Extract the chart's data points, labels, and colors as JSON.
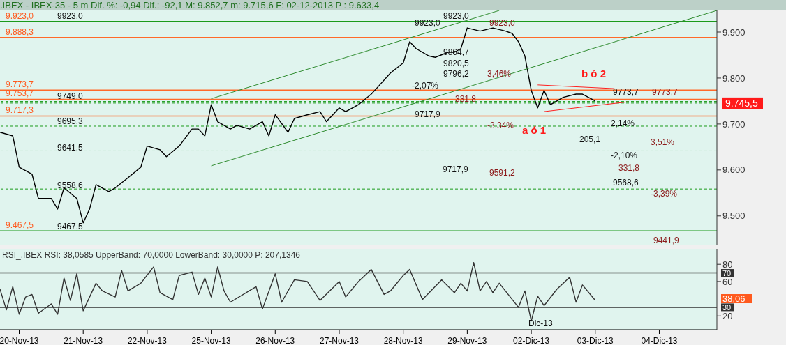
{
  "chart_data": [
    {
      "type": "line",
      "title": ".IBEX - IBEX-35 -  5 m Dif. %: -0,94 Dif.: -92,1 M: 9.852,7 m: 9.715,6 F: 02-12-2013 P : 9.633,4",
      "categories": [
        null,
        null,
        null,
        null,
        null,
        null,
        null,
        null,
        null,
        null,
        null,
        null,
        null,
        null,
        null,
        null,
        null,
        null,
        null,
        null,
        null,
        null,
        null,
        null,
        null,
        null,
        null,
        null,
        null,
        null,
        null,
        null,
        null,
        null,
        null,
        null,
        null,
        null,
        null,
        null,
        null,
        null,
        null,
        null,
        null,
        null,
        null,
        null,
        null,
        null,
        null,
        null,
        null,
        null,
        null,
        null,
        null,
        null,
        null,
        null,
        null,
        null,
        null,
        null,
        null,
        null,
        null,
        null,
        null,
        null,
        null,
        null,
        null,
        null,
        null,
        null,
        null,
        null,
        null,
        null,
        null,
        null,
        null,
        null,
        null,
        null,
        null,
        null,
        null,
        null,
        null,
        null,
        null,
        null,
        null,
        null,
        null,
        null,
        null,
        null,
        null,
        null,
        null,
        null,
        null,
        null,
        null,
        null,
        null,
        null,
        null,
        null,
        null
      ],
      "ylim": [
        9436,
        9947
      ],
      "yticks": [
        {
          "value": 9500,
          "label": "9.500"
        },
        {
          "value": 9600,
          "label": "9.600"
        },
        {
          "value": 9700,
          "label": "9.700"
        },
        {
          "value": 9800,
          "label": "9.800"
        },
        {
          "value": 9900,
          "label": "9.900"
        }
      ],
      "tick_labels": "y",
      "series": [
        {
          "color": "#000000",
          "values": [
            9682,
            null,
            9674,
            9606,
            null,
            9591,
            9538,
            null,
            9538,
            9515,
            9561,
            null,
            9538,
            9485,
            9515,
            9568,
            null,
            9553,
            9561,
            null,
            9583,
            null,
            9606,
            9652,
            null,
            9644,
            9629,
            null,
            9652,
            null,
            9689,
            9689,
            9674,
            9742,
            9705,
            null,
            9689,
            9697,
            null,
            9689,
            null,
            9705,
            9674,
            9720,
            null,
            9682,
            9712,
            null,
            9720,
            null,
            9727,
            9705,
            null,
            9735,
            9727,
            null,
            9742,
            null,
            9765,
            9780,
            null,
            9811,
            null,
            9833,
            9879,
            9864,
            null,
            9848,
            9845,
            null,
            9856,
            9856,
            9864,
            9909,
            null,
            9902,
            null,
            9909,
            null,
            9902,
            9897,
            9879,
            9848,
            9773,
            9735,
            9773,
            9742,
            null,
            9758,
            null,
            9765,
            9765,
            null,
            9750,
            null,
            null,
            null,
            null,
            null,
            null,
            null,
            null,
            null,
            null,
            null,
            null,
            null,
            null,
            null,
            null,
            null,
            null,
            null
          ]
        },
        {
          "color": "#2e8b2e",
          "values": [
            null,
            null,
            null,
            null,
            null,
            null,
            null,
            null,
            null,
            null,
            null,
            null,
            null,
            null,
            null,
            null,
            null,
            null,
            null,
            null,
            null,
            null,
            null,
            null,
            null,
            null,
            null,
            null,
            null,
            null,
            null,
            null,
            null,
            9755,
            null,
            null,
            null,
            null,
            null,
            null,
            null,
            null,
            null,
            null,
            null,
            null,
            null,
            null,
            null,
            null,
            null,
            null,
            null,
            null,
            null,
            null,
            null,
            null,
            null,
            null,
            null,
            null,
            null,
            null,
            null,
            null,
            null,
            null,
            null,
            null,
            null,
            null,
            null,
            null,
            null,
            null,
            null,
            null,
            9947,
            null,
            null,
            null,
            null,
            null,
            null,
            null,
            null,
            null,
            null,
            null,
            null,
            null,
            null,
            null,
            null,
            null,
            null,
            null,
            null,
            null,
            null,
            null,
            null,
            null,
            null,
            null,
            null,
            null,
            null,
            null,
            null,
            null,
            null
          ]
        },
        {
          "color": "#2e8b2e",
          "values": [
            null,
            null,
            null,
            null,
            null,
            null,
            null,
            null,
            null,
            null,
            null,
            null,
            null,
            null,
            null,
            null,
            null,
            null,
            null,
            null,
            null,
            null,
            null,
            null,
            null,
            null,
            null,
            null,
            null,
            null,
            null,
            null,
            null,
            9609,
            null,
            null,
            null,
            null,
            null,
            null,
            null,
            null,
            null,
            null,
            null,
            null,
            null,
            null,
            null,
            null,
            null,
            null,
            null,
            null,
            null,
            null,
            null,
            null,
            null,
            null,
            null,
            null,
            null,
            null,
            null,
            null,
            null,
            null,
            null,
            null,
            null,
            null,
            null,
            null,
            null,
            null,
            null,
            null,
            null,
            null,
            null,
            null,
            null,
            null,
            null,
            null,
            null,
            null,
            null,
            null,
            null,
            null,
            null,
            null,
            null,
            null,
            null,
            null,
            null,
            null,
            null,
            null,
            null,
            null,
            null,
            null,
            null,
            null,
            null,
            null,
            null,
            null,
            9947
          ]
        },
        {
          "color": "#ff2020",
          "values": [
            null,
            null,
            null,
            null,
            null,
            null,
            null,
            null,
            null,
            null,
            null,
            null,
            null,
            null,
            null,
            null,
            null,
            null,
            null,
            null,
            null,
            null,
            null,
            null,
            null,
            null,
            null,
            null,
            null,
            null,
            null,
            null,
            null,
            null,
            null,
            null,
            null,
            null,
            null,
            null,
            null,
            null,
            null,
            null,
            null,
            null,
            null,
            null,
            null,
            null,
            null,
            null,
            null,
            null,
            null,
            null,
            null,
            null,
            null,
            null,
            null,
            null,
            null,
            null,
            null,
            null,
            null,
            null,
            null,
            null,
            null,
            null,
            null,
            null,
            null,
            null,
            null,
            null,
            null,
            null,
            null,
            null,
            null,
            null,
            9785,
            null,
            null,
            null,
            null,
            null,
            null,
            null,
            null,
            null,
            null,
            null,
            9777,
            null,
            null,
            null,
            null,
            null,
            null,
            null,
            null,
            null,
            null,
            null,
            null,
            null,
            null,
            null,
            null
          ]
        },
        {
          "color": "#ff2020",
          "values": [
            null,
            null,
            null,
            null,
            null,
            null,
            null,
            null,
            null,
            null,
            null,
            null,
            null,
            null,
            null,
            null,
            null,
            null,
            null,
            null,
            null,
            null,
            null,
            null,
            null,
            null,
            null,
            null,
            null,
            null,
            null,
            null,
            null,
            null,
            null,
            null,
            null,
            null,
            null,
            null,
            null,
            null,
            null,
            null,
            null,
            null,
            null,
            null,
            null,
            null,
            null,
            null,
            null,
            null,
            null,
            null,
            null,
            null,
            null,
            null,
            null,
            null,
            null,
            null,
            null,
            null,
            null,
            null,
            null,
            null,
            null,
            null,
            null,
            null,
            null,
            null,
            null,
            null,
            null,
            null,
            null,
            null,
            null,
            null,
            null,
            9727,
            null,
            null,
            null,
            null,
            null,
            null,
            null,
            null,
            null,
            null,
            null,
            null,
            9748,
            null,
            null,
            null,
            null,
            null,
            null,
            null,
            null,
            null,
            null,
            null,
            null,
            null,
            null
          ]
        }
      ],
      "ref_lines": [
        {
          "axis": "y",
          "value": 9923,
          "label": "9.923,0",
          "color": "#1a9a1a"
        },
        {
          "axis": "y",
          "value": 9888.3,
          "label": "9.888,3",
          "color": "#ff6a2a"
        },
        {
          "axis": "y",
          "value": 9773.7,
          "label": "9.773,7",
          "color": "#ff6a2a"
        },
        {
          "axis": "y",
          "value": 9753.7,
          "label": "9.753,7",
          "color": "#ff6a2a"
        },
        {
          "axis": "y",
          "value": 9717.3,
          "label": "9.717,3",
          "color": "#ff6a2a"
        },
        {
          "axis": "y",
          "value": 9467.5,
          "label": "9.467,5",
          "color": "#1a9a1a"
        },
        {
          "axis": "y",
          "value": 9749,
          "color": "#1a9a1a",
          "line_style": "dashed"
        },
        {
          "axis": "y",
          "value": 9695.3,
          "color": "#1a9a1a",
          "line_style": "dashed"
        },
        {
          "axis": "y",
          "value": 9641.5,
          "color": "#1a9a1a",
          "line_style": "dashed"
        },
        {
          "axis": "y",
          "value": 9558.6,
          "color": "#1a9a1a",
          "line_style": "dashed"
        },
        {
          "axis": "y",
          "value": 9745.5,
          "label": "9.745,5",
          "color": "#1a9a1a",
          "line_style": "dashed"
        }
      ],
      "annotations": [
        "9923,0",
        "9749,0",
        "9695,3",
        "9641,5",
        "9558,6",
        "9467,5",
        "9923,0",
        "9923,0",
        "9923,0",
        "9864,7",
        "9820,5",
        "9796,2",
        "3,46%",
        "-2,07%",
        "331,8",
        "9717,9",
        "-3,34%",
        "a ó 1",
        "9717,9",
        "9591,2",
        "b ó 2",
        "9773,7",
        "9773,7",
        "2,14%",
        "205,1",
        "-2,10%",
        "331,8",
        "9568,6",
        "3,51%",
        "-3,39%",
        "9441,9"
      ]
    },
    {
      "type": "line",
      "title": "RSI_.IBEX RSI: 38,0585 UpperBand: 70,0000 LowerBand: 30,0000 P: 207,1346",
      "categories": [
        null,
        null,
        null,
        "20-Nov-13",
        null,
        null,
        null,
        null,
        null,
        null,
        null,
        null,
        null,
        "21-Nov-13",
        null,
        null,
        null,
        null,
        null,
        null,
        null,
        null,
        null,
        "22-Nov-13",
        null,
        null,
        null,
        null,
        null,
        null,
        null,
        null,
        null,
        "25-Nov-13",
        null,
        null,
        null,
        null,
        null,
        null,
        null,
        null,
        null,
        "26-Nov-13",
        null,
        null,
        null,
        null,
        null,
        null,
        null,
        null,
        null,
        "27-Nov-13",
        null,
        null,
        null,
        null,
        null,
        null,
        null,
        null,
        null,
        "28-Nov-13",
        null,
        null,
        null,
        null,
        null,
        null,
        null,
        null,
        null,
        "29-Nov-13",
        null,
        null,
        null,
        null,
        null,
        null,
        null,
        null,
        null,
        "02-Dic-13",
        null,
        null,
        null,
        null,
        null,
        null,
        null,
        null,
        null,
        "03-Dic-13",
        null,
        null,
        null,
        null,
        null,
        null,
        null,
        null,
        null,
        "04-Dic-13",
        null,
        null,
        null,
        null,
        null,
        null,
        null,
        null,
        null
      ],
      "ylim": [
        4,
        98
      ],
      "yticks": [
        20,
        60,
        80
      ],
      "series": [
        {
          "color": "#333333",
          "values": [
            51,
            27,
            54,
            22,
            42,
            45,
            23,
            null,
            34,
            22,
            64,
            38,
            69,
            26,
            null,
            58,
            49,
            null,
            42,
            73,
            49,
            null,
            58,
            null,
            77,
            47,
            null,
            39,
            67,
            null,
            71,
            45,
            64,
            42,
            77,
            49,
            36,
            null,
            null,
            null,
            54,
            28,
            null,
            69,
            36,
            null,
            62,
            null,
            60,
            null,
            38,
            null,
            null,
            60,
            42,
            null,
            60,
            null,
            74,
            null,
            45,
            49,
            null,
            67,
            74,
            null,
            39,
            null,
            null,
            62,
            null,
            47,
            58,
            49,
            82,
            49,
            60,
            47,
            58,
            null,
            null,
            30,
            49,
            14,
            43,
            32,
            null,
            51,
            null,
            65,
            36,
            56,
            null,
            38,
            null,
            null,
            null,
            null,
            null,
            null,
            null,
            null,
            null,
            null,
            null,
            null,
            null,
            null,
            null,
            null,
            null,
            null,
            null
          ]
        }
      ],
      "ref_lines": [
        {
          "axis": "y",
          "value": 70,
          "label": "70",
          "color": "#333333"
        },
        {
          "axis": "y",
          "value": 30,
          "label": "30",
          "color": "#333333"
        }
      ],
      "annotations": [
        "Dic-13",
        "38,06"
      ]
    }
  ]
}
